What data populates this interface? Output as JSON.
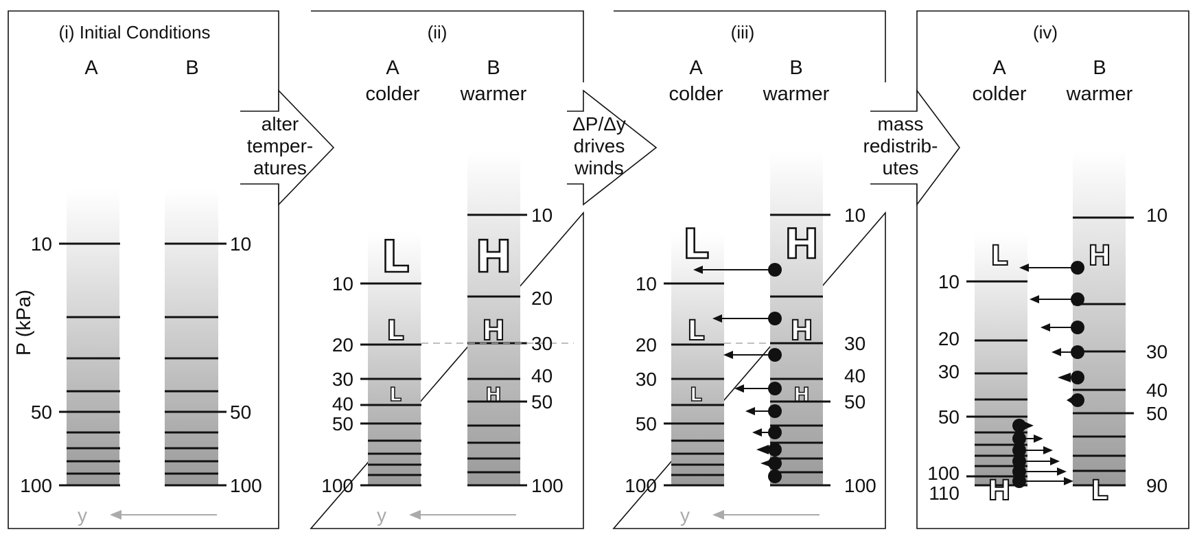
{
  "panels": [
    {
      "title": "(i) Initial Conditions",
      "col_a": "A",
      "col_b": "B",
      "y_label": "P (kPa)",
      "axis_arrow": "y",
      "ticks_left": [
        "10",
        "50",
        "100"
      ],
      "ticks_right": [
        "10",
        "50",
        "100"
      ]
    },
    {
      "title": "(ii)",
      "col_a": "A",
      "col_a_sub": "colder",
      "col_b": "B",
      "col_b_sub": "warmer",
      "axis_arrow": "y",
      "ticks_left": [
        "10",
        "20",
        "30",
        "40",
        "50",
        "100"
      ],
      "ticks_right": [
        "10",
        "20",
        "30",
        "40",
        "50",
        "100"
      ],
      "marks_a": [
        "L",
        "L",
        "L"
      ],
      "marks_b": [
        "H",
        "H",
        "H"
      ]
    },
    {
      "title": "(iii)",
      "col_a": "A",
      "col_a_sub": "colder",
      "col_b": "B",
      "col_b_sub": "warmer",
      "axis_arrow": "y",
      "ticks_left": [
        "10",
        "20",
        "30",
        "50",
        "100"
      ],
      "ticks_right": [
        "10",
        "30",
        "40",
        "50",
        "100"
      ],
      "marks_a": [
        "L",
        "L",
        "L"
      ],
      "marks_b": [
        "H",
        "H",
        "H"
      ]
    },
    {
      "title": "(iv)",
      "col_a": "A",
      "col_a_sub": "colder",
      "col_b": "B",
      "col_b_sub": "warmer",
      "ticks_left": [
        "10",
        "20",
        "30",
        "50",
        "100",
        "110"
      ],
      "ticks_right": [
        "10",
        "30",
        "40",
        "50",
        "90"
      ],
      "marks_a": [
        "L",
        "H"
      ],
      "marks_b": [
        "H",
        "L"
      ]
    }
  ],
  "transitions": [
    {
      "lines": [
        "alter",
        "temper-",
        "atures"
      ]
    },
    {
      "lines": [
        "ΔP/Δy",
        "drives",
        "winds"
      ]
    },
    {
      "lines": [
        "mass",
        "redistrib-",
        "utes"
      ]
    }
  ],
  "colors": {
    "ink": "#111111",
    "column_top": "#ffffff",
    "column_bottom": "#999999",
    "axis_arrow": "#aaaaaa",
    "dashed_line": "#aaaaaa"
  }
}
